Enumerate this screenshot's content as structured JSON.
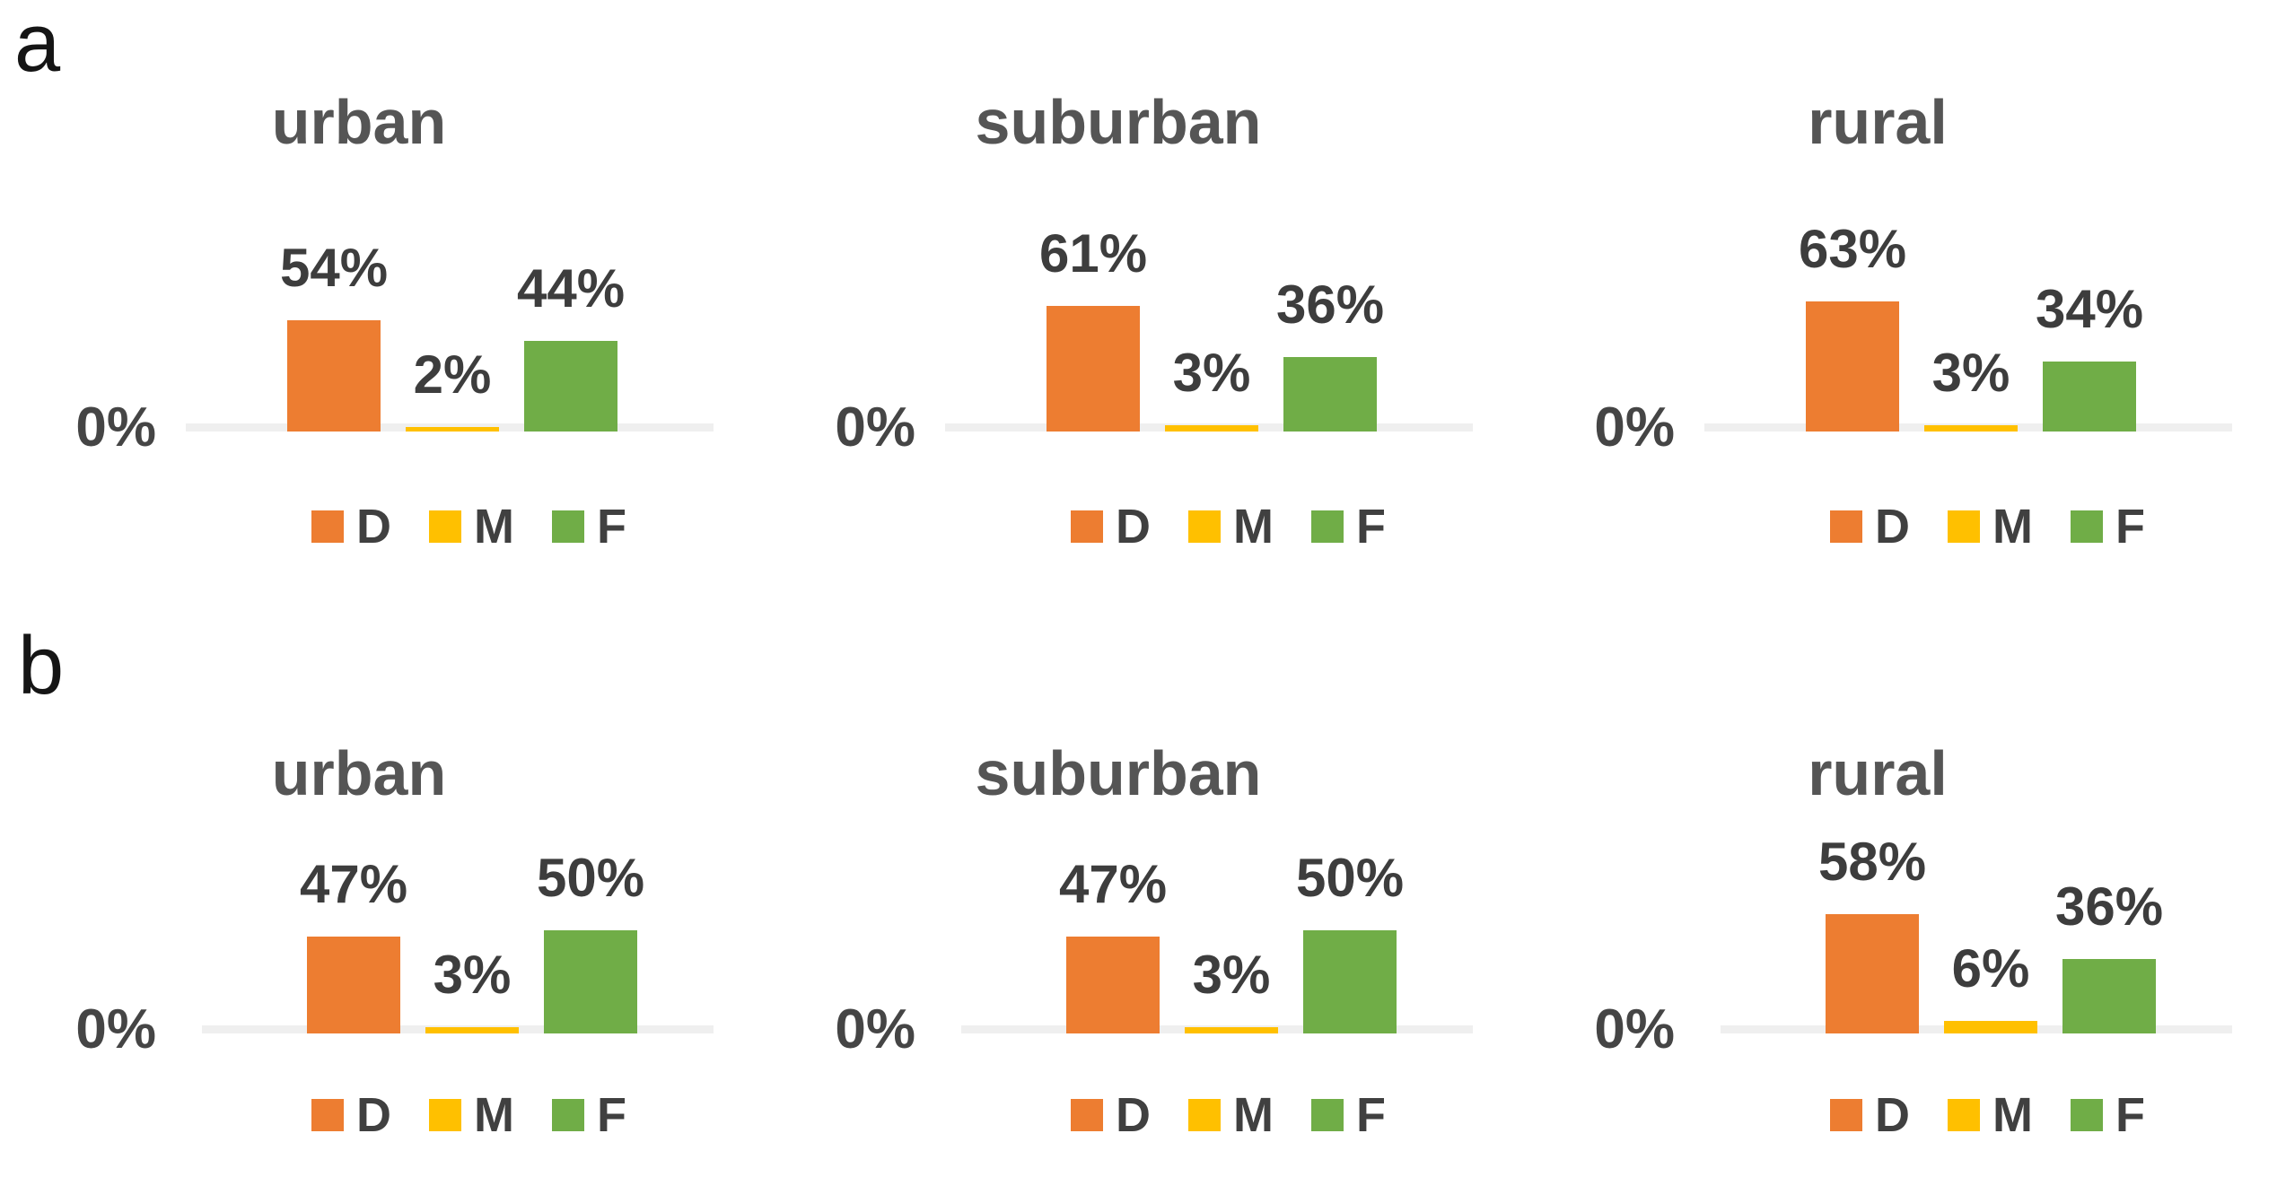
{
  "figure": {
    "panel_a_label": "a",
    "panel_b_label": "b"
  },
  "axis": {
    "zero_label": "0%"
  },
  "legend": {
    "position": "bottom",
    "items": [
      {
        "label": "D",
        "color": "#ED7D31"
      },
      {
        "label": "M",
        "color": "#FFC000"
      },
      {
        "label": "F",
        "color": "#70AD47"
      }
    ]
  },
  "chart_data": [
    {
      "type": "bar",
      "panel": "a",
      "title": "urban",
      "categories": [
        "D",
        "M",
        "F"
      ],
      "values": [
        54,
        2,
        44
      ],
      "value_labels": [
        "54%",
        "2%",
        "44%"
      ],
      "colors": [
        "#ED7D31",
        "#FFC000",
        "#70AD47"
      ],
      "ylim": [
        0,
        70
      ],
      "y_tick_labels": [
        "0%"
      ],
      "grid": false,
      "legend_position": "bottom"
    },
    {
      "type": "bar",
      "panel": "a",
      "title": "suburban",
      "categories": [
        "D",
        "M",
        "F"
      ],
      "values": [
        61,
        3,
        36
      ],
      "value_labels": [
        "61%",
        "3%",
        "36%"
      ],
      "colors": [
        "#ED7D31",
        "#FFC000",
        "#70AD47"
      ],
      "ylim": [
        0,
        70
      ],
      "y_tick_labels": [
        "0%"
      ],
      "grid": false,
      "legend_position": "bottom"
    },
    {
      "type": "bar",
      "panel": "a",
      "title": "rural",
      "categories": [
        "D",
        "M",
        "F"
      ],
      "values": [
        63,
        3,
        34
      ],
      "value_labels": [
        "63%",
        "3%",
        "34%"
      ],
      "colors": [
        "#ED7D31",
        "#FFC000",
        "#70AD47"
      ],
      "ylim": [
        0,
        70
      ],
      "y_tick_labels": [
        "0%"
      ],
      "grid": false,
      "legend_position": "bottom"
    },
    {
      "type": "bar",
      "panel": "b",
      "title": "urban",
      "categories": [
        "D",
        "M",
        "F"
      ],
      "values": [
        47,
        3,
        50
      ],
      "value_labels": [
        "47%",
        "3%",
        "50%"
      ],
      "colors": [
        "#ED7D31",
        "#FFC000",
        "#70AD47"
      ],
      "ylim": [
        0,
        70
      ],
      "y_tick_labels": [
        "0%"
      ],
      "grid": false,
      "legend_position": "bottom"
    },
    {
      "type": "bar",
      "panel": "b",
      "title": "suburban",
      "categories": [
        "D",
        "M",
        "F"
      ],
      "values": [
        47,
        3,
        50
      ],
      "value_labels": [
        "47%",
        "3%",
        "50%"
      ],
      "colors": [
        "#ED7D31",
        "#FFC000",
        "#70AD47"
      ],
      "ylim": [
        0,
        70
      ],
      "y_tick_labels": [
        "0%"
      ],
      "grid": false,
      "legend_position": "bottom"
    },
    {
      "type": "bar",
      "panel": "b",
      "title": "rural",
      "categories": [
        "D",
        "M",
        "F"
      ],
      "values": [
        58,
        6,
        36
      ],
      "value_labels": [
        "58%",
        "6%",
        "36%"
      ],
      "colors": [
        "#ED7D31",
        "#FFC000",
        "#70AD47"
      ],
      "ylim": [
        0,
        70
      ],
      "y_tick_labels": [
        "0%"
      ],
      "grid": false,
      "legend_position": "bottom"
    }
  ]
}
